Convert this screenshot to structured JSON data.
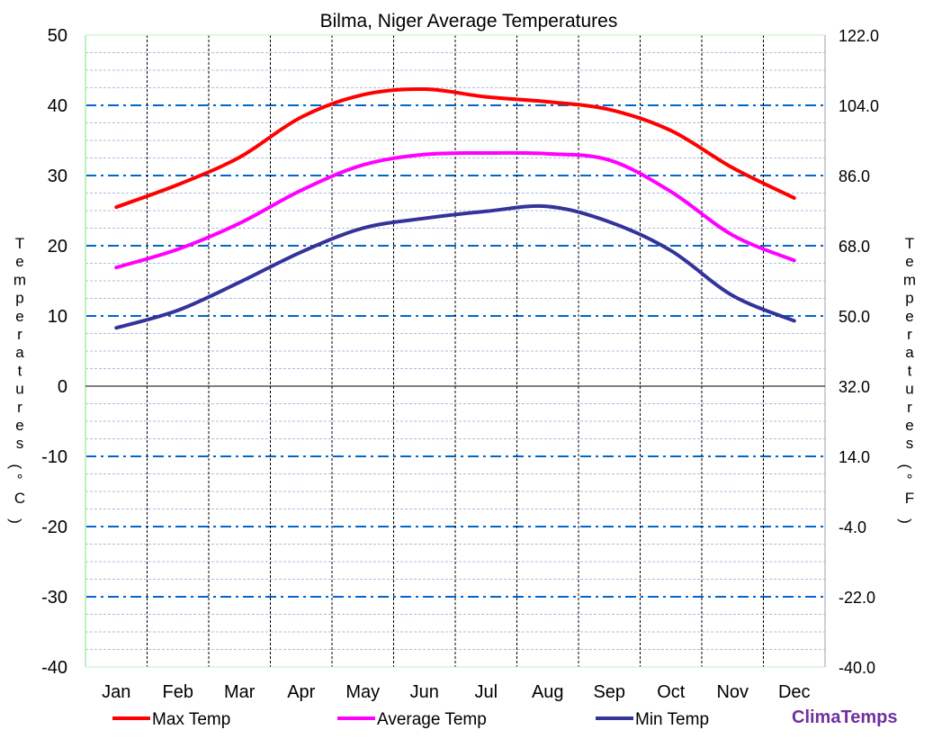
{
  "chart_data": {
    "type": "line",
    "title": "Bilma, Niger Average Temperatures",
    "ylabel_left": "Temperatures (°C)",
    "ylabel_right": "Temperatures (°F)",
    "categories": [
      "Jan",
      "Feb",
      "Mar",
      "Apr",
      "May",
      "Jun",
      "Jul",
      "Aug",
      "Sep",
      "Oct",
      "Nov",
      "Dec"
    ],
    "ylim": [
      -40,
      50
    ],
    "yticks": [
      50,
      40,
      30,
      20,
      10,
      0,
      -10,
      -20,
      -30,
      -40
    ],
    "yticks_right": [
      "122.0",
      "104.0",
      "86.0",
      "68.0",
      "50.0",
      "32.0",
      "14.0",
      "-4.0",
      "-22.0",
      "-40.0"
    ],
    "grid": true,
    "legend_placement": "bottom",
    "series": [
      {
        "name": "Max Temp",
        "color": "#ff0000",
        "values": [
          25.5,
          28.7,
          32.6,
          38.3,
          41.5,
          42.3,
          41.2,
          40.5,
          39.4,
          36.4,
          31.1,
          26.8
        ]
      },
      {
        "name": "Average Temp",
        "color": "#ff00ff",
        "values": [
          16.9,
          19.5,
          23.2,
          27.9,
          31.5,
          33.0,
          33.2,
          33.1,
          32.2,
          27.7,
          21.5,
          17.9
        ]
      },
      {
        "name": "Min Temp",
        "color": "#333399",
        "values": [
          8.3,
          10.8,
          14.8,
          19.1,
          22.5,
          23.9,
          24.9,
          25.6,
          23.4,
          19.3,
          12.9,
          9.3
        ]
      }
    ]
  },
  "brand": {
    "text": "ClimaTemps",
    "color": "#7030a0"
  }
}
